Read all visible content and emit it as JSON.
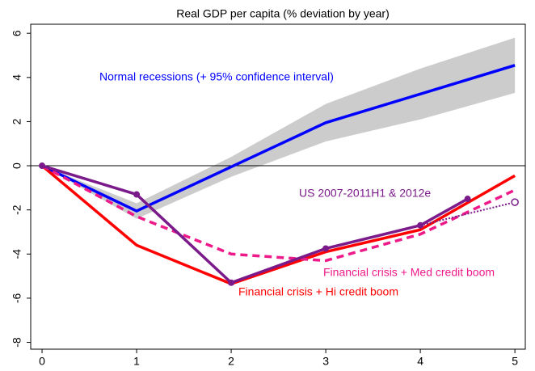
{
  "chart_data": {
    "type": "line",
    "title": "Real GDP per capita (% deviation by year)",
    "xlim": [
      -0.12,
      5.11
    ],
    "ylim": [
      -8.31,
      6.41
    ],
    "xticks": [
      0,
      1,
      2,
      3,
      4,
      5
    ],
    "yticks": [
      -8,
      -6,
      -4,
      -2,
      0,
      2,
      4,
      6
    ],
    "reference_line": 0,
    "band": {
      "color": "#cccccc",
      "x": [
        0,
        1,
        2,
        3,
        4,
        5
      ],
      "upper": [
        0,
        -1.7,
        0.4,
        2.8,
        4.4,
        5.8
      ],
      "lower": [
        0,
        -2.4,
        -0.5,
        1.1,
        2.1,
        3.3
      ]
    },
    "series": [
      {
        "name": "Normal recessions (+ 95% confidence interval)",
        "color": "#0000ff",
        "style": "solid",
        "x": [
          0,
          1,
          2,
          3,
          4,
          5
        ],
        "values": [
          0,
          -2.05,
          -0.05,
          1.95,
          3.25,
          4.55
        ]
      },
      {
        "name": "Financial crisis + Hi credit boom",
        "color": "#ff0000",
        "style": "solid",
        "x": [
          0,
          1,
          2,
          3,
          4,
          5
        ],
        "values": [
          0,
          -3.6,
          -5.35,
          -3.9,
          -2.9,
          -0.45
        ]
      },
      {
        "name": "Financial crisis + Med credit boom",
        "color": "#ee1a8a",
        "style": "dashed",
        "x": [
          0,
          1,
          2,
          3,
          4,
          5
        ],
        "values": [
          0,
          -2.3,
          -4.0,
          -4.3,
          -3.1,
          -1.1
        ]
      },
      {
        "name": "US 2007-2011H1 & 2012e",
        "color": "#7b1a8a",
        "style": "solid",
        "markers": "filled",
        "x": [
          0,
          1,
          2,
          3,
          4,
          4.5
        ],
        "values": [
          0,
          -1.3,
          -5.3,
          -3.75,
          -2.7,
          -1.5
        ]
      },
      {
        "color": "#7b1a8a",
        "style": "dotted",
        "markers": "hollow-last",
        "x": [
          4,
          5
        ],
        "values": [
          -2.7,
          -1.65
        ]
      }
    ]
  }
}
